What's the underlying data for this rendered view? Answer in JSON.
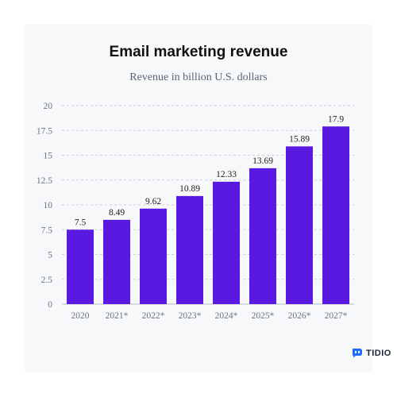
{
  "chart_data": {
    "type": "bar",
    "title": "Email marketing revenue",
    "subtitle": "Revenue in billion U.S. dollars",
    "categories": [
      "2020",
      "2021*",
      "2022*",
      "2023*",
      "2024*",
      "2025*",
      "2026*",
      "2027*"
    ],
    "values": [
      7.5,
      8.49,
      9.62,
      10.89,
      12.33,
      13.69,
      15.89,
      17.9
    ],
    "value_labels": [
      "7.5",
      "8.49",
      "9.62",
      "10.89",
      "12.33",
      "13.69",
      "15.89",
      "17.9"
    ],
    "ylim": [
      0,
      20
    ],
    "yticks": [
      0,
      2.5,
      5,
      7.5,
      10,
      12.5,
      15,
      17.5,
      20
    ],
    "ytick_labels": [
      "0",
      "2.5",
      "5",
      "7.5",
      "10",
      "12.5",
      "15",
      "17.5",
      "20"
    ],
    "grid": true,
    "bar_color": "#5a19e0"
  },
  "brand": {
    "name": "TIDIO",
    "icon": "tidio-logo-icon",
    "color": "#1f6bff"
  }
}
